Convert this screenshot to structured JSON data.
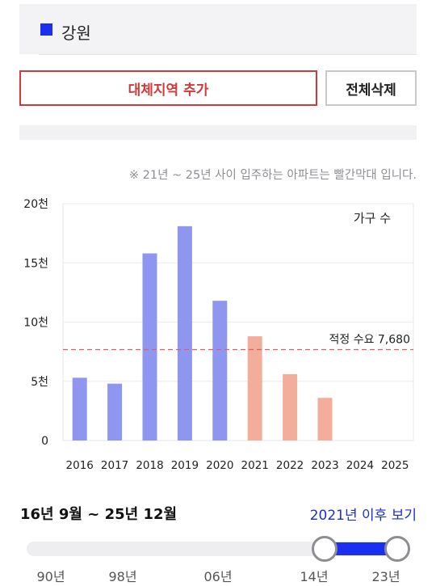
{
  "region": {
    "name": "강원",
    "color": "#1a2ff0"
  },
  "buttons": {
    "add_region": "대체지역 추가",
    "delete_all": "전체삭제"
  },
  "note": "※ 21년 ~ 25년 사이 입주하는 아파트는 빨간막대 입니다.",
  "chart_data": {
    "type": "bar",
    "categories": [
      "2016",
      "2017",
      "2018",
      "2019",
      "2020",
      "2021",
      "2022",
      "2023",
      "2024",
      "2025"
    ],
    "values": [
      5300,
      4800,
      15800,
      18100,
      11800,
      8800,
      5600,
      3600,
      0,
      0
    ],
    "bar_colors": [
      "#8f96f0",
      "#8f96f0",
      "#8f96f0",
      "#8f96f0",
      "#8f96f0",
      "#f3ad9b",
      "#f3ad9b",
      "#f3ad9b",
      "#f3ad9b",
      "#f3ad9b"
    ],
    "ylim": [
      0,
      20000
    ],
    "yticks": [
      {
        "value": 0,
        "label": "0"
      },
      {
        "value": 5000,
        "label": "5천"
      },
      {
        "value": 10000,
        "label": "10천"
      },
      {
        "value": 15000,
        "label": "15천"
      },
      {
        "value": 20000,
        "label": "20천"
      }
    ],
    "unit_label": "가구 수",
    "reference_line": {
      "value": 7680,
      "label": "적정 수요 7,680",
      "color": "#e06060"
    },
    "grid": true
  },
  "period": {
    "range_text": "16년 9월 ~ 25년 12월",
    "link_text": "2021년 이후 보기"
  },
  "slider": {
    "ticks": [
      "90년",
      "98년",
      "06년",
      "14년",
      "23년"
    ],
    "selected_from": "21년",
    "selected_to": "25년"
  }
}
